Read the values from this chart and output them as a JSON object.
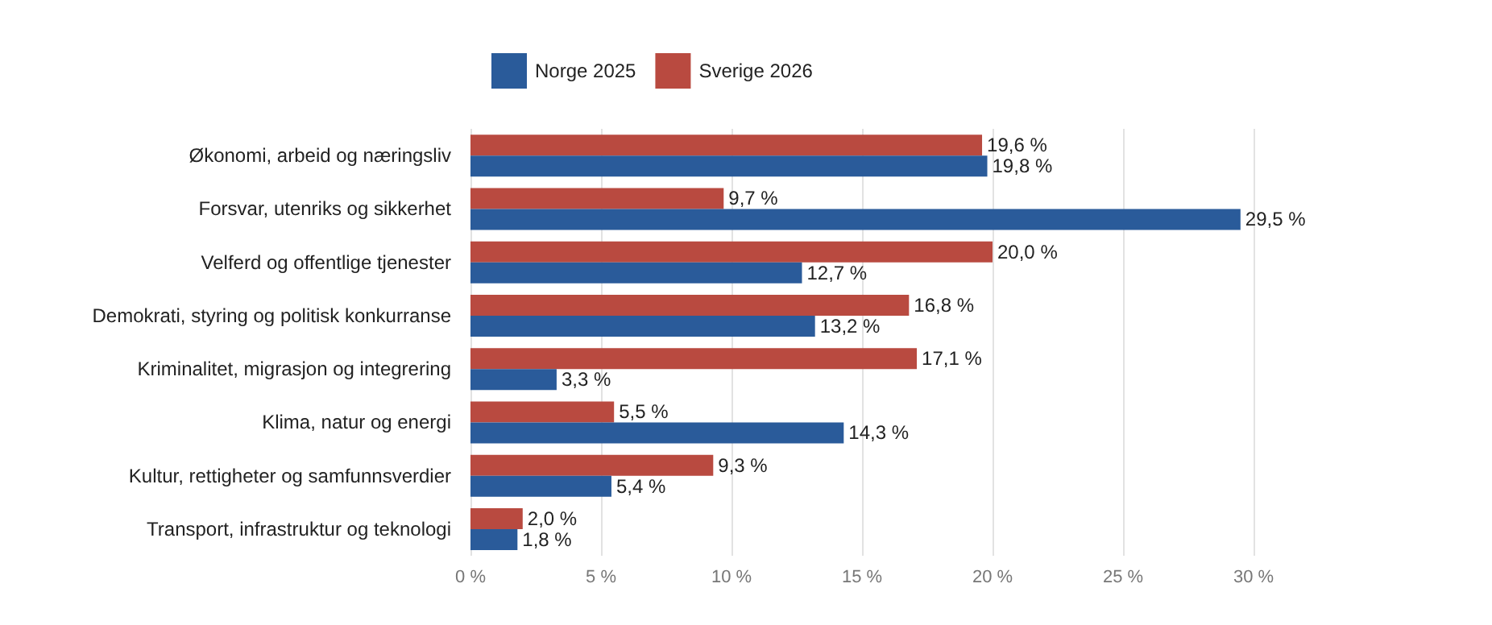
{
  "chart_data": {
    "type": "bar",
    "orientation": "horizontal",
    "categories": [
      "Økonomi, arbeid og næringsliv",
      "Forsvar, utenriks og sikkerhet",
      "Velferd og offentlige tjenester",
      "Demokrati, styring og politisk konkurranse",
      "Kriminalitet, migrasjon og integrering",
      "Klima, natur og energi",
      "Kultur, rettigheter og samfunnsverdier",
      "Transport, infrastruktur og teknologi"
    ],
    "series": [
      {
        "name": "Norge 2025",
        "color": "#2a5b9a",
        "values": [
          19.8,
          29.5,
          12.7,
          13.2,
          3.3,
          14.3,
          5.4,
          1.8
        ],
        "value_labels": [
          "19,8 %",
          "29,5 %",
          "12,7 %",
          "13,2 %",
          "3,3 %",
          "14,3 %",
          "5,4 %",
          "1,8 %"
        ]
      },
      {
        "name": "Sverige 2026",
        "color": "#b94a40",
        "values": [
          19.6,
          9.7,
          20.0,
          16.8,
          17.1,
          5.5,
          9.3,
          2.0
        ],
        "value_labels": [
          "19,6 %",
          "9,7 %",
          "20,0 %",
          "16,8 %",
          "17,1 %",
          "5,5 %",
          "9,3 %",
          "2,0 %"
        ]
      }
    ],
    "xlim": [
      0,
      30
    ],
    "xticks": [
      {
        "value": 0,
        "label": "0 %"
      },
      {
        "value": 5,
        "label": "5 %"
      },
      {
        "value": 10,
        "label": "10 %"
      },
      {
        "value": 15,
        "label": "15 %"
      },
      {
        "value": 20,
        "label": "20 %"
      },
      {
        "value": 25,
        "label": "25 %"
      },
      {
        "value": 30,
        "label": "30 %"
      }
    ],
    "grid": "x",
    "legend": "top"
  }
}
